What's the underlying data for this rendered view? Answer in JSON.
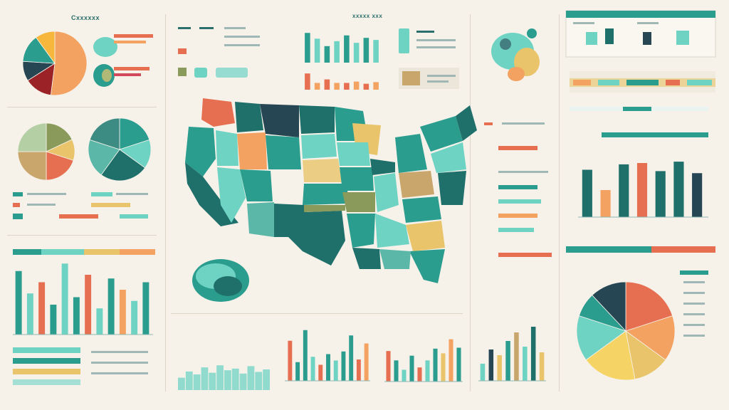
{
  "palette": {
    "teal": "#2a9d8f",
    "dark_teal": "#1f6f6b",
    "deep": "#264653",
    "mint": "#6fd3c4",
    "sand": "#e9c46a",
    "orange": "#f4a261",
    "rust": "#e76f51",
    "red": "#d1495b",
    "olive": "#8a9a5b",
    "tan": "#c9a66b",
    "paper": "#f6f2ea"
  },
  "labels": {
    "top_left_title": "Cxxxxxx",
    "top_center_title": "xxxxx xxx"
  },
  "chart_data": [
    {
      "type": "map",
      "region": "United States",
      "fill_colors": [
        "#2a9d8f",
        "#1f6f6b",
        "#6fd3c4",
        "#e9c46a",
        "#f4a261",
        "#e76f51",
        "#8a9a5b",
        "#264653"
      ]
    },
    {
      "type": "pie",
      "slices": [
        {
          "value": 52,
          "color": "#f4a261"
        },
        {
          "value": 14,
          "color": "#9b2226"
        },
        {
          "value": 10,
          "color": "#264653"
        },
        {
          "value": 14,
          "color": "#2a9d8f"
        },
        {
          "value": 10,
          "color": "#f6b73c"
        }
      ]
    },
    {
      "type": "pie",
      "slices": [
        {
          "value": 18,
          "color": "#8a9a5b"
        },
        {
          "value": 12,
          "color": "#e9c46a"
        },
        {
          "value": 20,
          "color": "#e76f51"
        },
        {
          "value": 25,
          "color": "#c9a66b"
        },
        {
          "value": 25,
          "color": "#b5cfa5"
        }
      ]
    },
    {
      "type": "pie",
      "slices": [
        {
          "value": 20,
          "color": "#2a9d8f"
        },
        {
          "value": 15,
          "color": "#6fd3c4"
        },
        {
          "value": 25,
          "color": "#1f6f6b"
        },
        {
          "value": 20,
          "color": "#5bb8a8"
        },
        {
          "value": 20,
          "color": "#3d8c84"
        }
      ]
    },
    {
      "type": "pie",
      "slices": [
        {
          "value": 20,
          "color": "#e76f51"
        },
        {
          "value": 15,
          "color": "#f4a261"
        },
        {
          "value": 12,
          "color": "#e9c46a"
        },
        {
          "value": 18,
          "color": "#f6d365"
        },
        {
          "value": 15,
          "color": "#6fd3c4"
        },
        {
          "value": 8,
          "color": "#2a9d8f"
        },
        {
          "value": 12,
          "color": "#264653"
        }
      ]
    },
    {
      "type": "bar",
      "values": [
        72,
        58,
        40,
        52,
        66,
        48,
        60,
        55
      ],
      "colors": [
        "#2a9d8f",
        "#6fd3c4",
        "#2a9d8f",
        "#6fd3c4",
        "#2a9d8f",
        "#6fd3c4",
        "#2a9d8f",
        "#6fd3c4"
      ]
    },
    {
      "type": "bar",
      "values": [
        60,
        25,
        38,
        25,
        25,
        30,
        22,
        28
      ],
      "colors": [
        "#e76f51",
        "#f4a261",
        "#e76f51",
        "#f4a261",
        "#e76f51",
        "#f4a261",
        "#e76f51",
        "#f4a261"
      ]
    },
    {
      "type": "bar",
      "values": [
        70,
        40,
        78,
        80,
        68,
        82,
        65
      ],
      "colors": [
        "#1f6f6b",
        "#f4a261",
        "#1f6f6b",
        "#e76f51",
        "#1f6f6b",
        "#1f6f6b",
        "#264653"
      ]
    },
    {
      "type": "bar",
      "values": [
        85,
        55,
        70,
        40,
        95,
        50,
        80,
        35,
        75,
        60,
        45,
        70
      ],
      "colors": [
        "#2a9d8f",
        "#6fd3c4",
        "#e76f51",
        "#2a9d8f",
        "#6fd3c4",
        "#2a9d8f",
        "#e76f51",
        "#6fd3c4",
        "#2a9d8f",
        "#f4a261",
        "#6fd3c4",
        "#2a9d8f"
      ]
    },
    {
      "type": "bar",
      "values": [
        75,
        35,
        95,
        45,
        30,
        50,
        38,
        55,
        85,
        40,
        70
      ],
      "colors": [
        "#e76f51",
        "#2a9d8f",
        "#2a9d8f",
        "#6fd3c4",
        "#e76f51",
        "#2a9d8f",
        "#6fd3c4",
        "#2a9d8f",
        "#2a9d8f",
        "#e76f51",
        "#f4a261"
      ]
    },
    {
      "type": "bar",
      "values": [
        65,
        45,
        25,
        55,
        30,
        45,
        70,
        60,
        90,
        72
      ],
      "colors": [
        "#e76f51",
        "#2a9d8f",
        "#6fd3c4",
        "#2a9d8f",
        "#e76f51",
        "#6fd3c4",
        "#2a9d8f",
        "#e9c46a",
        "#f4a261",
        "#2a9d8f"
      ]
    },
    {
      "type": "bar",
      "values": [
        30,
        55,
        45,
        70,
        85,
        60,
        95,
        50
      ],
      "colors": [
        "#6fd3c4",
        "#264653",
        "#e9c46a",
        "#2a9d8f",
        "#c9a66b",
        "#6fd3c4",
        "#1f6f6b",
        "#e9c46a"
      ]
    },
    {
      "type": "area",
      "values": [
        30,
        45,
        38,
        55,
        42,
        60,
        48,
        52,
        40,
        58,
        44,
        50
      ],
      "colors": [
        "#6fd3c4"
      ]
    }
  ]
}
